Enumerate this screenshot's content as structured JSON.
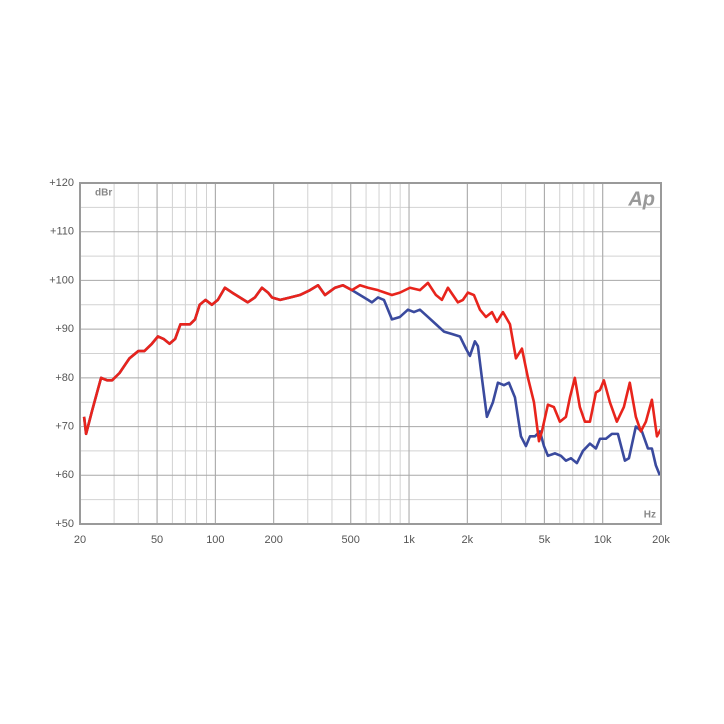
{
  "chart_data": {
    "type": "line",
    "y_label": "dBr",
    "x_label": "Hz",
    "logo": "Ap",
    "xscale": "log",
    "xlim": [
      20,
      20000
    ],
    "ylim": [
      50,
      120
    ],
    "xticks": [
      20,
      50,
      100,
      200,
      500,
      {
        "value": 1000,
        "label": "1k"
      },
      {
        "value": 2000,
        "label": "2k"
      },
      {
        "value": 5000,
        "label": "5k"
      },
      {
        "value": 10000,
        "label": "10k"
      },
      {
        "value": 20000,
        "label": "20k"
      }
    ],
    "yticks": [
      {
        "value": 50,
        "label": "+50"
      },
      {
        "value": 60,
        "label": "+60"
      },
      {
        "value": 70,
        "label": "+70"
      },
      {
        "value": 80,
        "label": "+80"
      },
      {
        "value": 90,
        "label": "+90"
      },
      {
        "value": 100,
        "label": "+100"
      },
      {
        "value": 110,
        "label": "+110"
      },
      {
        "value": 120,
        "label": "+120"
      }
    ],
    "grid": true,
    "minor_grid": true,
    "series": [
      {
        "color": "#e8241c",
        "x": [
          21,
          21.5,
          23,
          24.5,
          25.7,
          27.6,
          29.3,
          32,
          36,
          40,
          43,
          47,
          50.5,
          54,
          58,
          62,
          66,
          70,
          74,
          78.5,
          83,
          89,
          96,
          103,
          112,
          122,
          134,
          147,
          160,
          174,
          187,
          196,
          216,
          243,
          273,
          308,
          339,
          368,
          415,
          456,
          507,
          558,
          614,
          691,
          751,
          816,
          897,
          1011,
          1138,
          1252,
          1377,
          1478,
          1588,
          1684,
          1788,
          1898,
          2014,
          2163,
          2323,
          2494,
          2680,
          2844,
          3055,
          3320,
          3565,
          3828,
          4112,
          4416,
          4688,
          4854,
          5213,
          5598,
          6012,
          6457,
          6776,
          7180,
          7620,
          8092,
          8590,
          9226,
          9680,
          10140,
          10890,
          11830,
          12860,
          13800,
          14830,
          15740,
          16710,
          17950,
          19060,
          20000
        ],
        "values": [
          72,
          68.5,
          73,
          77,
          80,
          79.5,
          79.5,
          81,
          84,
          85.5,
          85.5,
          87,
          88.5,
          88,
          87,
          88,
          91,
          91,
          91,
          92,
          95,
          96,
          95,
          96,
          98.5,
          97.5,
          96.5,
          95.5,
          96.5,
          98.5,
          97.5,
          96.5,
          96,
          96.5,
          97,
          98,
          99,
          97,
          98.5,
          99,
          98,
          99,
          98.5,
          98,
          97.5,
          97,
          97.5,
          98.5,
          98,
          99.5,
          97,
          96,
          98.5,
          97,
          95.5,
          96,
          97.5,
          97,
          94,
          92.5,
          93.5,
          91.5,
          93.5,
          91,
          84,
          86,
          80,
          75,
          67,
          69,
          74.5,
          74,
          71,
          72,
          76,
          80,
          74,
          71,
          71,
          77,
          77.5,
          79.5,
          75,
          71,
          74,
          79,
          72,
          69,
          71,
          75.5,
          68,
          69.5
        ]
      },
      {
        "color": "#3a4a9e",
        "x": [
          21,
          21.5,
          23,
          24.5,
          25.7,
          27.6,
          29.3,
          32,
          36,
          40,
          43,
          47,
          50.5,
          54,
          58,
          62,
          66,
          70,
          74,
          78.5,
          83,
          89,
          96,
          103,
          112,
          122,
          134,
          147,
          160,
          174,
          187,
          196,
          216,
          243,
          273,
          308,
          339,
          368,
          415,
          456,
          507,
          558,
          614,
          643,
          691,
          742,
          816,
          897,
          987,
          1060,
          1138,
          1252,
          1377,
          1514,
          1666,
          1832,
          1967,
          2062,
          2188,
          2268,
          2378,
          2524,
          2711,
          2877,
          3091,
          3280,
          3522,
          3782,
          4014,
          4211,
          4468,
          4742,
          4973,
          5213,
          5666,
          6084,
          6457,
          6854,
          7360,
          7906,
          8590,
          9226,
          9680,
          10390,
          11160,
          11980,
          13020,
          13660,
          14830,
          15940,
          17120,
          17950,
          18820,
          19730
        ],
        "values": [
          72,
          68.5,
          73,
          77,
          80,
          79.5,
          79.5,
          81,
          84,
          85.5,
          85.5,
          87,
          88.5,
          88,
          87,
          88,
          91,
          91,
          91,
          92,
          95,
          96,
          95,
          96,
          98.5,
          97.5,
          96.5,
          95.5,
          96.5,
          98.5,
          97.5,
          96.5,
          96,
          96.5,
          97,
          98,
          99,
          97,
          98.5,
          99,
          98,
          97,
          96,
          95.5,
          96.5,
          96,
          92,
          92.5,
          94,
          93.5,
          94,
          92.5,
          91,
          89.5,
          89,
          88.5,
          86,
          84.5,
          87.5,
          86.5,
          80,
          72,
          75,
          79,
          78.5,
          79,
          76,
          68,
          66,
          68,
          68,
          69,
          66,
          64,
          64.5,
          64,
          63,
          63.5,
          62.5,
          65,
          66.5,
          65.5,
          67.5,
          67.5,
          68.5,
          68.5,
          63,
          63.5,
          70,
          69,
          65.5,
          65.5,
          62,
          60
        ]
      }
    ]
  }
}
